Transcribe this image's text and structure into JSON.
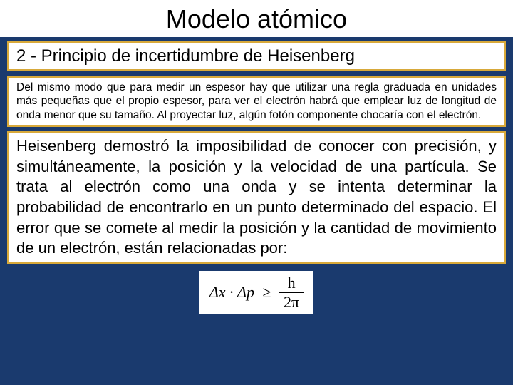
{
  "title": "Modelo atómico",
  "subtitle": "2 - Principio de incertidumbre de Heisenberg",
  "paragraph1": "Del mismo modo que para medir un espesor hay que utilizar una regla graduada en unidades más pequeñas que el propio espesor, para ver el electrón habrá que emplear luz de longitud de onda menor que su tamaño. Al proyectar luz, algún fotón componente chocaría con el electrón.",
  "paragraph2": "Heisenberg demostró la imposibilidad de conocer con precisión, y simultáneamente, la posición y la velocidad de una partícula. Se trata al electrón como una onda y se intenta determinar la probabilidad de encontrarlo en un punto determinado del espacio. El error que se comete al medir la posición y la cantidad de movimiento de un electrón, están relacionadas por:",
  "formula": {
    "lhs": "Δx · Δp",
    "relation": "≥",
    "numerator": "h",
    "denominator": "2π"
  },
  "colors": {
    "background": "#1a3a6e",
    "box_border": "#d8a93a",
    "box_fill": "#ffffff",
    "text": "#000000"
  },
  "fonts": {
    "main_family": "Arial",
    "formula_family": "Times New Roman",
    "title_size": 36,
    "subtitle_size": 24,
    "para1_size": 15.5,
    "para2_size": 22,
    "formula_size": 22
  }
}
